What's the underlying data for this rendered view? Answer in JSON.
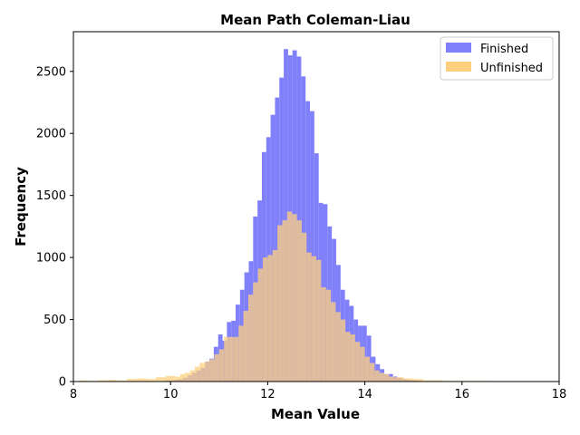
{
  "chart_data": {
    "type": "histogram",
    "title": "Mean Path Coleman-Liau",
    "xlabel": "Mean Value",
    "ylabel": "Frequency",
    "xlim": [
      8,
      18
    ],
    "ylim": [
      0,
      2820
    ],
    "xticks": [
      8,
      10,
      12,
      14,
      16,
      18
    ],
    "yticks": [
      0,
      500,
      1000,
      1500,
      2000,
      2500
    ],
    "grid": false,
    "legend_position": "top-right",
    "overlap_color": "#bf9680",
    "series": [
      {
        "name": "Finished",
        "color": "#8080fa",
        "bins": [
          [
            9.9,
            9.99,
            10
          ],
          [
            9.99,
            10.08,
            8
          ],
          [
            10.08,
            10.17,
            15
          ],
          [
            10.17,
            10.26,
            18
          ],
          [
            10.26,
            10.35,
            30
          ],
          [
            10.35,
            10.44,
            50
          ],
          [
            10.44,
            10.53,
            70
          ],
          [
            10.53,
            10.62,
            90
          ],
          [
            10.62,
            10.71,
            110
          ],
          [
            10.71,
            10.8,
            160
          ],
          [
            10.8,
            10.89,
            185
          ],
          [
            10.89,
            10.98,
            280
          ],
          [
            10.98,
            11.07,
            380
          ],
          [
            11.07,
            11.16,
            330
          ],
          [
            11.16,
            11.25,
            480
          ],
          [
            11.25,
            11.34,
            490
          ],
          [
            11.34,
            11.43,
            620
          ],
          [
            11.43,
            11.52,
            740
          ],
          [
            11.52,
            11.61,
            880
          ],
          [
            11.61,
            11.7,
            970
          ],
          [
            11.7,
            11.79,
            1330
          ],
          [
            11.79,
            11.88,
            1460
          ],
          [
            11.88,
            11.97,
            1850
          ],
          [
            11.97,
            12.06,
            1970
          ],
          [
            12.06,
            12.15,
            2150
          ],
          [
            12.15,
            12.24,
            2290
          ],
          [
            12.24,
            12.33,
            2450
          ],
          [
            12.33,
            12.42,
            2680
          ],
          [
            12.42,
            12.51,
            2630
          ],
          [
            12.51,
            12.6,
            2670
          ],
          [
            12.6,
            12.69,
            2620
          ],
          [
            12.69,
            12.78,
            2460
          ],
          [
            12.78,
            12.87,
            2260
          ],
          [
            12.87,
            12.96,
            2180
          ],
          [
            12.96,
            13.05,
            1840
          ],
          [
            13.05,
            13.14,
            1440
          ],
          [
            13.14,
            13.23,
            1430
          ],
          [
            13.23,
            13.32,
            1250
          ],
          [
            13.32,
            13.41,
            1150
          ],
          [
            13.41,
            13.5,
            940
          ],
          [
            13.5,
            13.59,
            740
          ],
          [
            13.59,
            13.68,
            660
          ],
          [
            13.68,
            13.77,
            610
          ],
          [
            13.77,
            13.86,
            500
          ],
          [
            13.86,
            13.95,
            450
          ],
          [
            13.95,
            14.04,
            450
          ],
          [
            14.04,
            14.13,
            370
          ],
          [
            14.13,
            14.22,
            200
          ],
          [
            14.22,
            14.31,
            140
          ],
          [
            14.31,
            14.4,
            100
          ],
          [
            14.4,
            14.49,
            60
          ],
          [
            14.49,
            14.58,
            60
          ],
          [
            14.58,
            14.67,
            40
          ],
          [
            14.67,
            14.76,
            30
          ],
          [
            14.76,
            14.85,
            20
          ],
          [
            14.85,
            14.94,
            15
          ],
          [
            14.94,
            15.03,
            10
          ],
          [
            15.03,
            15.12,
            8
          ]
        ]
      },
      {
        "name": "Unfinished",
        "color": "#fed07e",
        "bins": [
          [
            8.1,
            8.3,
            8
          ],
          [
            8.3,
            8.5,
            5
          ],
          [
            8.5,
            8.7,
            10
          ],
          [
            8.7,
            8.9,
            12
          ],
          [
            8.9,
            9.1,
            8
          ],
          [
            9.1,
            9.3,
            20
          ],
          [
            9.3,
            9.5,
            25
          ],
          [
            9.5,
            9.7,
            20
          ],
          [
            9.7,
            9.9,
            35
          ],
          [
            9.9,
            10.1,
            45
          ],
          [
            10.1,
            10.2,
            40
          ],
          [
            10.2,
            10.3,
            60
          ],
          [
            10.3,
            10.4,
            70
          ],
          [
            10.4,
            10.5,
            90
          ],
          [
            10.5,
            10.6,
            120
          ],
          [
            10.6,
            10.7,
            150
          ],
          [
            10.7,
            10.8,
            160
          ],
          [
            10.8,
            10.9,
            180
          ],
          [
            10.9,
            11.0,
            220
          ],
          [
            11.0,
            11.1,
            260
          ],
          [
            11.1,
            11.2,
            360
          ],
          [
            11.2,
            11.3,
            360
          ],
          [
            11.3,
            11.4,
            360
          ],
          [
            11.4,
            11.5,
            450
          ],
          [
            11.5,
            11.6,
            570
          ],
          [
            11.6,
            11.7,
            700
          ],
          [
            11.7,
            11.8,
            800
          ],
          [
            11.8,
            11.9,
            910
          ],
          [
            11.9,
            12.0,
            1000
          ],
          [
            12.0,
            12.1,
            1020
          ],
          [
            12.1,
            12.2,
            1060
          ],
          [
            12.2,
            12.3,
            1260
          ],
          [
            12.3,
            12.4,
            1300
          ],
          [
            12.4,
            12.5,
            1370
          ],
          [
            12.5,
            12.6,
            1350
          ],
          [
            12.6,
            12.7,
            1300
          ],
          [
            12.7,
            12.8,
            1200
          ],
          [
            12.8,
            12.9,
            1040
          ],
          [
            12.9,
            13.0,
            1010
          ],
          [
            13.0,
            13.1,
            980
          ],
          [
            13.1,
            13.2,
            760
          ],
          [
            13.2,
            13.3,
            740
          ],
          [
            13.3,
            13.4,
            640
          ],
          [
            13.4,
            13.5,
            560
          ],
          [
            13.5,
            13.6,
            500
          ],
          [
            13.6,
            13.7,
            400
          ],
          [
            13.7,
            13.8,
            380
          ],
          [
            13.8,
            13.9,
            320
          ],
          [
            13.9,
            14.0,
            280
          ],
          [
            14.0,
            14.1,
            200
          ],
          [
            14.1,
            14.2,
            150
          ],
          [
            14.2,
            14.3,
            90
          ],
          [
            14.3,
            14.4,
            70
          ],
          [
            14.4,
            14.5,
            60
          ],
          [
            14.5,
            14.6,
            40
          ],
          [
            14.6,
            14.8,
            35
          ],
          [
            14.8,
            15.0,
            25
          ],
          [
            15.0,
            15.2,
            20
          ],
          [
            15.2,
            15.4,
            10
          ],
          [
            15.4,
            15.6,
            10
          ],
          [
            15.6,
            15.8,
            5
          ],
          [
            15.8,
            16.0,
            5
          ],
          [
            16.0,
            16.3,
            5
          ],
          [
            16.3,
            16.6,
            5
          ],
          [
            16.6,
            17.0,
            3
          ],
          [
            17.0,
            17.5,
            2
          ]
        ]
      }
    ]
  }
}
